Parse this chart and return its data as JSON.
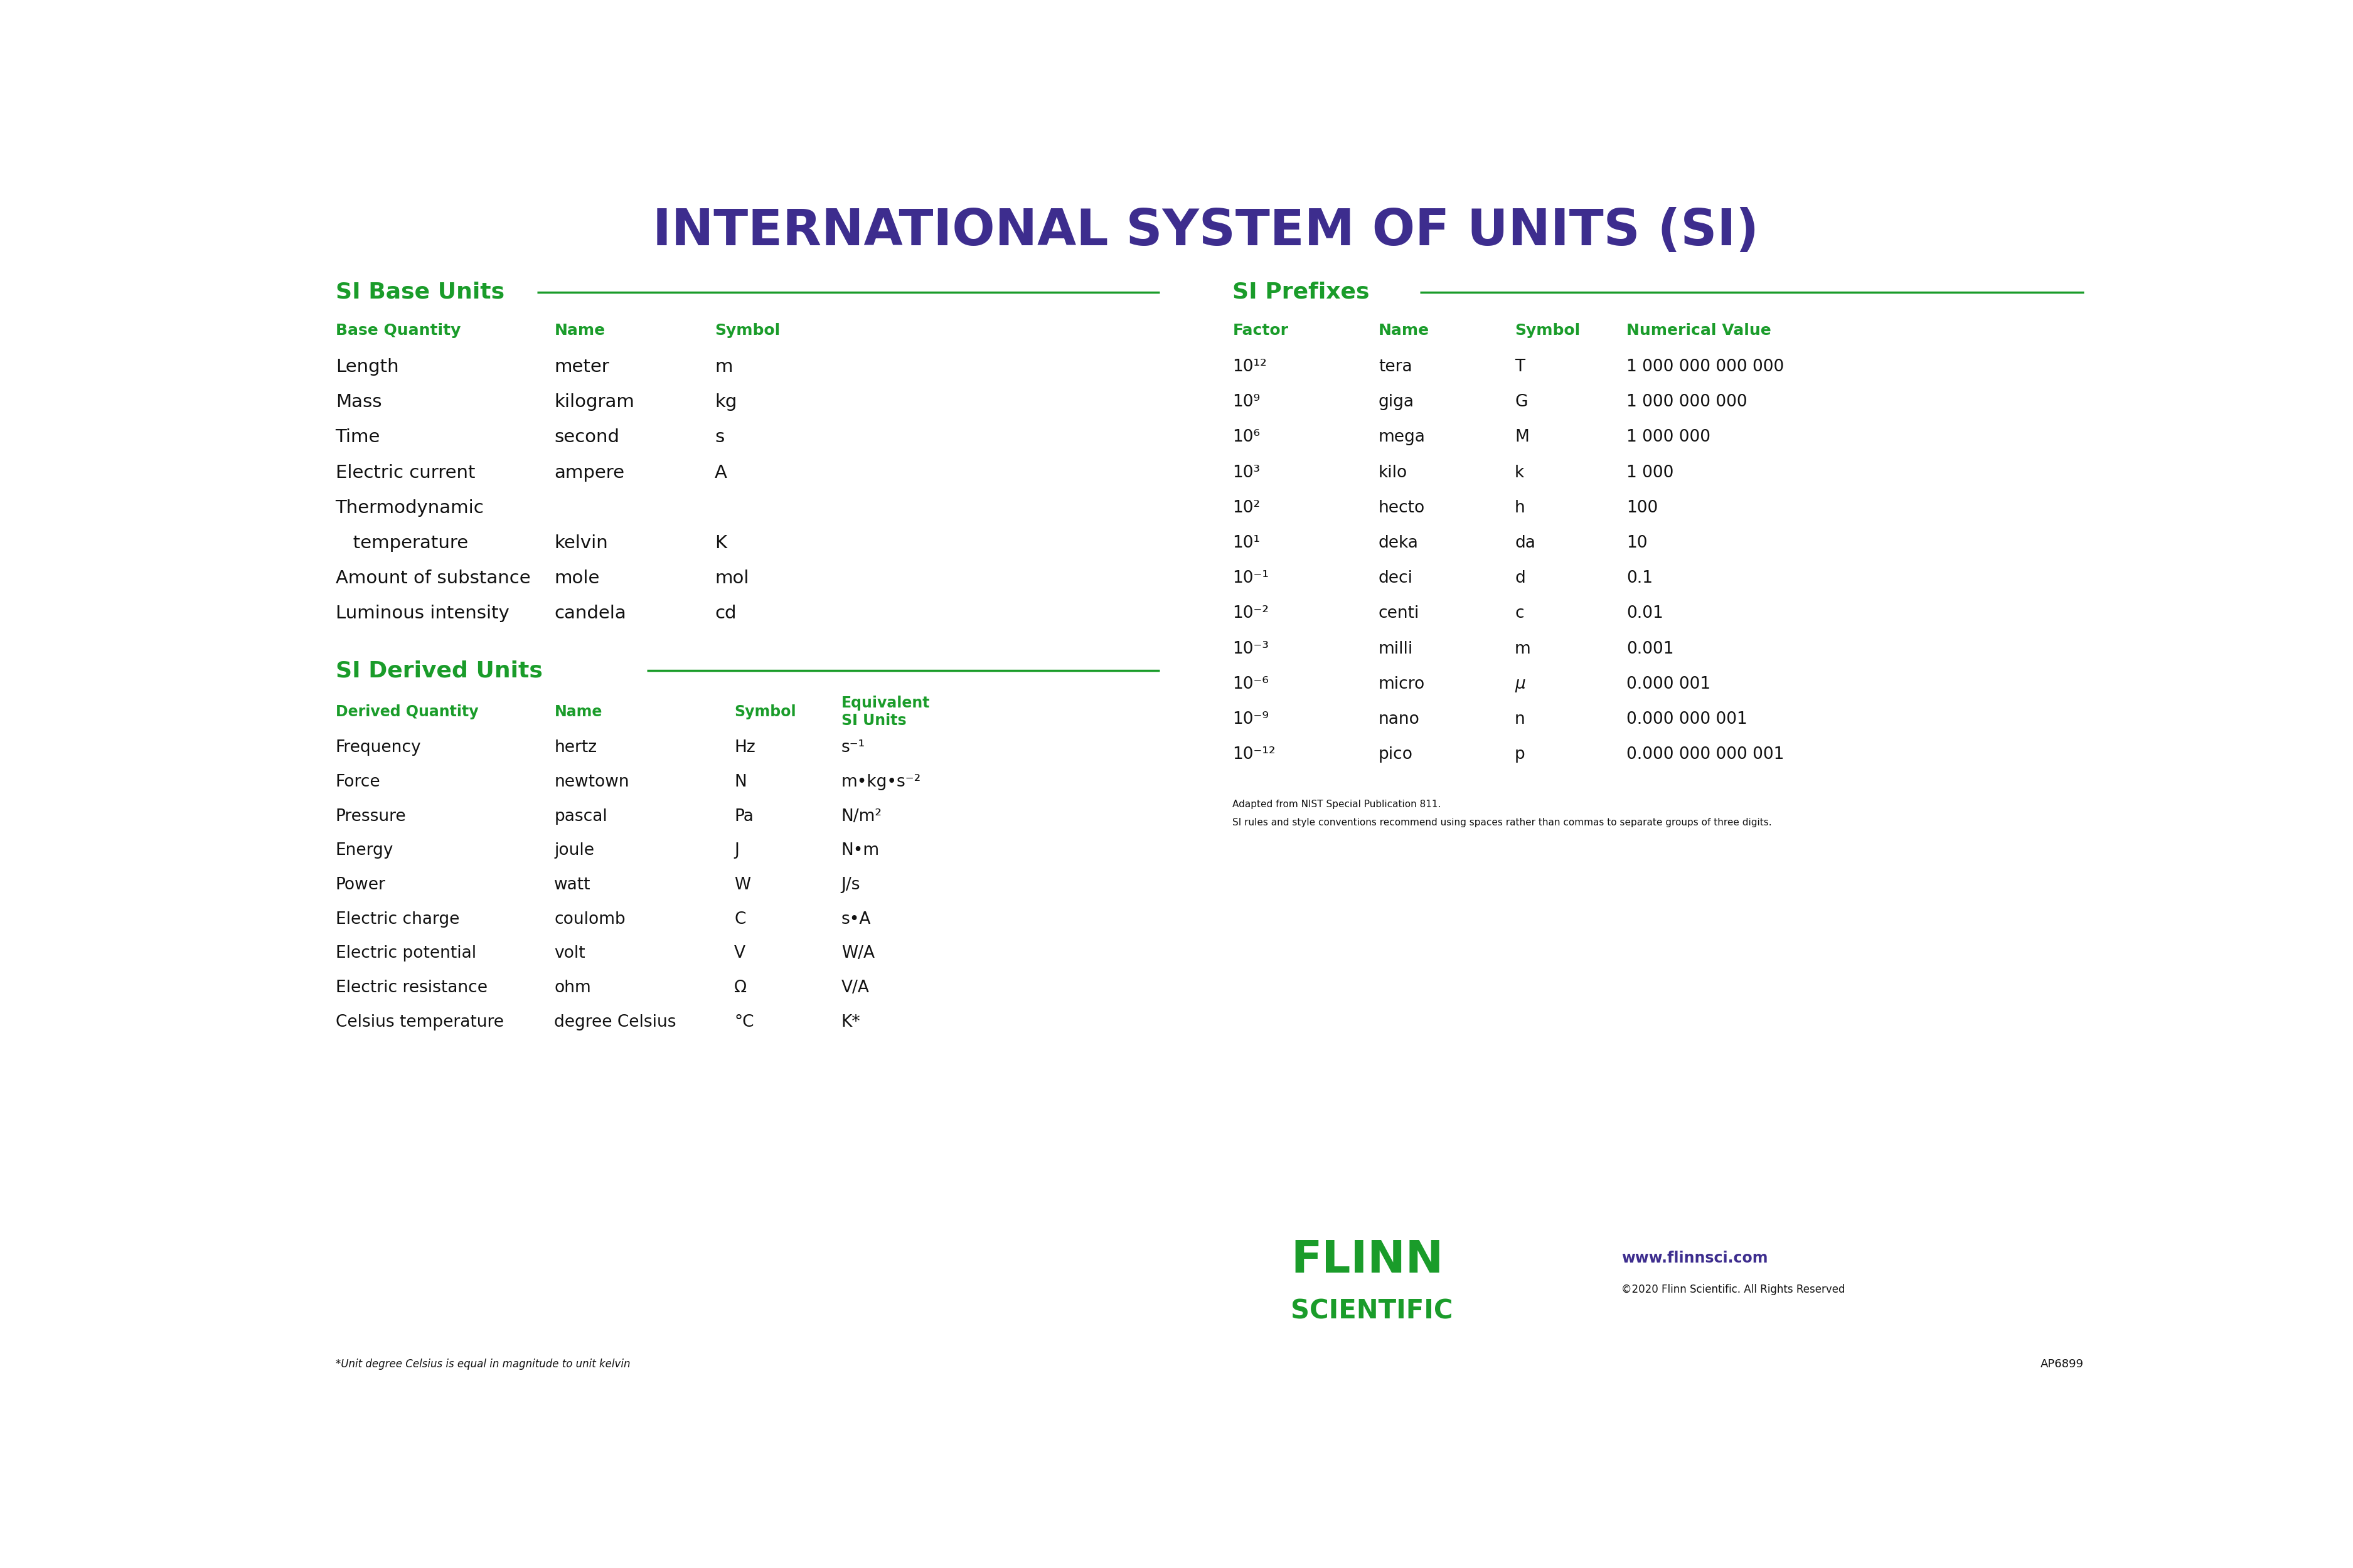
{
  "title": "INTERNATIONAL SYSTEM OF UNITS (SI)",
  "title_color": "#3d2d8e",
  "title_fontsize": 58,
  "background_color": "#ffffff",
  "green_color": "#1a9c2a",
  "black_color": "#111111",
  "purple_color": "#3d2d8e",
  "base_section_title": "SI Base Units",
  "base_headers": [
    "Base Quantity",
    "Name",
    "Symbol"
  ],
  "base_data": [
    [
      "Length",
      "meter",
      "m"
    ],
    [
      "Mass",
      "kilogram",
      "kg"
    ],
    [
      "Time",
      "second",
      "s"
    ],
    [
      "Electric current",
      "ampere",
      "A"
    ],
    [
      "Thermodynamic",
      "kelvin",
      "K"
    ],
    [
      "Amount of substance",
      "mole",
      "mol"
    ],
    [
      "Luminous intensity",
      "candela",
      "cd"
    ]
  ],
  "thermo_indent": "   temperature",
  "derived_section_title": "SI Derived Units",
  "derived_headers": [
    "Derived Quantity",
    "Name",
    "Symbol",
    "Equivalent\nSI Units"
  ],
  "derived_data": [
    [
      "Frequency",
      "hertz",
      "Hz",
      "s⁻¹"
    ],
    [
      "Force",
      "newtown",
      "N",
      "m•kg•s⁻²"
    ],
    [
      "Pressure",
      "pascal",
      "Pa",
      "N/m²"
    ],
    [
      "Energy",
      "joule",
      "J",
      "N•m"
    ],
    [
      "Power",
      "watt",
      "W",
      "J/s"
    ],
    [
      "Electric charge",
      "coulomb",
      "C",
      "s•A"
    ],
    [
      "Electric potential",
      "volt",
      "V",
      "W/A"
    ],
    [
      "Electric resistance",
      "ohm",
      "Ω",
      "V/A"
    ],
    [
      "Celsius temperature",
      "degree Celsius",
      "°C",
      "K*"
    ]
  ],
  "prefix_section_title": "SI Prefixes",
  "prefix_headers": [
    "Factor",
    "Name",
    "Symbol",
    "Numerical Value"
  ],
  "prefix_data": [
    [
      "10¹²",
      "tera",
      "T",
      "1 000 000 000 000"
    ],
    [
      "10⁹",
      "giga",
      "G",
      "1 000 000 000"
    ],
    [
      "10⁶",
      "mega",
      "M",
      "1 000 000"
    ],
    [
      "10³",
      "kilo",
      "k",
      "1 000"
    ],
    [
      "10²",
      "hecto",
      "h",
      "100"
    ],
    [
      "10¹",
      "deka",
      "da",
      "10"
    ],
    [
      "10⁻¹",
      "deci",
      "d",
      "0.1"
    ],
    [
      "10⁻²",
      "centi",
      "c",
      "0.01"
    ],
    [
      "10⁻³",
      "milli",
      "m",
      "0.001"
    ],
    [
      "10⁻⁶",
      "micro",
      "μ",
      "0.000 001"
    ],
    [
      "10⁻⁹",
      "nano",
      "n",
      "0.000 000 001"
    ],
    [
      "10⁻¹²",
      "pico",
      "p",
      "0.000 000 000 001"
    ]
  ],
  "footnote1": "Adapted from NIST Special Publication 811.",
  "footnote2": "SI rules and style conventions recommend using spaces rather than commas to separate groups of three digits.",
  "footnote3": "*Unit degree Celsius is equal in magnitude to unit kelvin",
  "flinn_website": "www.flinnsci.com",
  "flinn_copyright": "©2020 Flinn Scientific. All Rights Reserved",
  "flinn_code": "AP6899"
}
